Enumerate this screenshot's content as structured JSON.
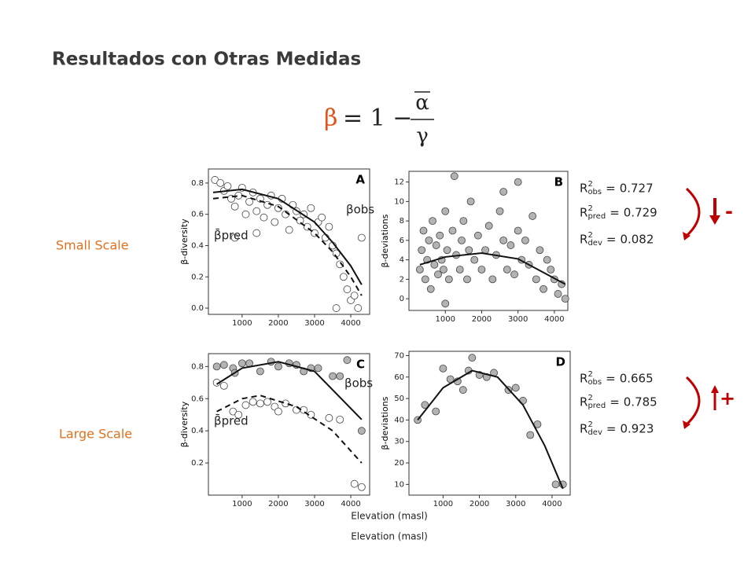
{
  "title": "Resultados con Otras Medidas",
  "formula": {
    "lhs": "β",
    "rhs": "= 1 −",
    "numerator": "α",
    "denominator": "γ"
  },
  "stat_symbol": "R",
  "stat_power": "2",
  "stat_eq": "=",
  "rows": [
    {
      "label": "Small Scale",
      "trend": "-",
      "stats": [
        {
          "sub": "obs",
          "value": 0.727
        },
        {
          "sub": "pred",
          "value": 0.729
        },
        {
          "sub": "dev",
          "value": 0.082
        }
      ]
    },
    {
      "label": "Large Scale",
      "trend": "+",
      "stats": [
        {
          "sub": "obs",
          "value": 0.665
        },
        {
          "sub": "pred",
          "value": 0.785
        },
        {
          "sub": "dev",
          "value": 0.923
        }
      ]
    }
  ],
  "x_axis_label": "Elevation (masl)",
  "caption": "Elevation (masl)",
  "chart_data": [
    {
      "type": "scatter",
      "panel": "A",
      "ylabel": "β-diversity",
      "xlim": [
        70,
        4520
      ],
      "xticks": [
        1000,
        2000,
        3000,
        4000
      ],
      "ylim": [
        -0.04,
        0.89
      ],
      "yticks": [
        {
          "value": 0,
          "label": "0.0"
        },
        0.2,
        0.4,
        0.6,
        0.8
      ],
      "series": [
        {
          "name": "βobs",
          "color": "#ffffff",
          "x": [
            250,
            400,
            500,
            600,
            700,
            800,
            900,
            1000,
            1100,
            1200,
            1300,
            1400,
            1500,
            1600,
            1700,
            1800,
            1900,
            2000,
            2100,
            2200,
            2300,
            2400,
            2500,
            2600,
            2700,
            2800,
            2900,
            3000,
            3100,
            3200,
            3300,
            3400,
            3500,
            3600,
            3700,
            3800,
            3900,
            4000,
            4100,
            4200,
            3600,
            4300,
            800,
            1400
          ],
          "values": [
            0.82,
            0.8,
            0.75,
            0.78,
            0.7,
            0.65,
            0.72,
            0.77,
            0.6,
            0.68,
            0.74,
            0.62,
            0.7,
            0.58,
            0.66,
            0.72,
            0.55,
            0.64,
            0.7,
            0.6,
            0.5,
            0.66,
            0.62,
            0.56,
            0.6,
            0.52,
            0.64,
            0.48,
            0.55,
            0.58,
            0.45,
            0.52,
            0.4,
            0.35,
            0.28,
            0.2,
            0.12,
            0.05,
            0.08,
            0,
            0,
            0.45,
            0.45,
            0.48
          ]
        }
      ],
      "fits": [
        {
          "dash": false,
          "x": [
            200,
            1000,
            2000,
            3000,
            3500,
            4000,
            4300
          ],
          "values": [
            0.74,
            0.76,
            0.7,
            0.55,
            0.42,
            0.27,
            0.15
          ]
        },
        {
          "dash": true,
          "x": [
            200,
            1000,
            2000,
            3000,
            3500,
            4000,
            4300
          ],
          "values": [
            0.7,
            0.72,
            0.65,
            0.48,
            0.36,
            0.2,
            0.08
          ]
        }
      ],
      "annotations": [
        "βobs",
        "β̄pred"
      ]
    },
    {
      "type": "scatter",
      "panel": "B",
      "ylabel": "β-deviations",
      "xlim": [
        0,
        4370
      ],
      "xticks": [
        1000,
        2000,
        3000,
        4000
      ],
      "ylim": [
        -1.2,
        13.1
      ],
      "yticks": [
        0,
        2,
        4,
        6,
        8,
        10,
        12
      ],
      "series": [
        {
          "name": "β-deviations",
          "color": "#b3b3b3",
          "x": [
            300,
            350,
            400,
            450,
            500,
            550,
            600,
            650,
            700,
            750,
            800,
            850,
            900,
            950,
            1000,
            1050,
            1100,
            1200,
            1250,
            1300,
            1400,
            1450,
            1500,
            1600,
            1650,
            1700,
            1800,
            1900,
            2000,
            2100,
            2200,
            2300,
            2400,
            2500,
            2600,
            2700,
            2800,
            2900,
            3000,
            3100,
            3200,
            3300,
            3400,
            3500,
            3600,
            3700,
            3800,
            3900,
            4000,
            4100,
            4200,
            4300,
            1000,
            2600,
            3000
          ],
          "values": [
            3,
            5,
            7,
            2,
            4,
            6,
            1,
            8,
            3.5,
            5.5,
            2.5,
            6.5,
            4,
            3,
            9,
            5,
            2,
            7,
            12.6,
            4.5,
            3,
            6,
            8,
            2,
            5,
            10,
            4,
            6.5,
            3,
            5,
            7.5,
            2,
            4.5,
            9,
            6,
            3,
            5.5,
            2.5,
            7,
            4,
            6,
            3.5,
            8.5,
            2,
            5,
            1,
            4,
            3,
            2,
            0.5,
            1.5,
            0,
            -0.5,
            11,
            12
          ]
        }
      ],
      "fits": [
        {
          "dash": false,
          "x": [
            300,
            1000,
            2000,
            3000,
            4300
          ],
          "values": [
            3.5,
            4.3,
            4.7,
            4.1,
            1.5
          ]
        }
      ]
    },
    {
      "type": "scatter",
      "panel": "C",
      "ylabel": "β-diversity",
      "xlim": [
        70,
        4520
      ],
      "xticks": [
        1000,
        2000,
        3000,
        4000
      ],
      "ylim": [
        0,
        0.88
      ],
      "yticks": [
        0.2,
        0.4,
        0.6,
        0.8
      ],
      "series": [
        {
          "name": "βobs",
          "color": "#b3b3b3",
          "x": [
            300,
            500,
            750,
            800,
            1000,
            1200,
            1500,
            1800,
            2000,
            2300,
            2500,
            2700,
            2900,
            3100,
            3500,
            3700,
            3900,
            4300
          ],
          "values": [
            0.8,
            0.81,
            0.79,
            0.76,
            0.82,
            0.82,
            0.77,
            0.83,
            0.8,
            0.82,
            0.81,
            0.77,
            0.79,
            0.79,
            0.74,
            0.74,
            0.84,
            0.4
          ]
        },
        {
          "name": "β̄pred",
          "color": "#ffffff",
          "x": [
            300,
            500,
            750,
            900,
            1100,
            1300,
            1500,
            1700,
            1900,
            2000,
            2200,
            2500,
            2700,
            2900,
            3400,
            3700,
            4100,
            4300
          ],
          "values": [
            0.7,
            0.68,
            0.52,
            0.5,
            0.56,
            0.58,
            0.57,
            0.58,
            0.55,
            0.52,
            0.57,
            0.53,
            0.53,
            0.5,
            0.48,
            0.47,
            0.07,
            0.05
          ]
        }
      ],
      "fits": [
        {
          "dash": false,
          "x": [
            300,
            1000,
            2000,
            3000,
            4300
          ],
          "values": [
            0.69,
            0.79,
            0.83,
            0.77,
            0.47
          ]
        },
        {
          "dash": true,
          "x": [
            300,
            1000,
            1500,
            2500,
            3500,
            4300
          ],
          "values": [
            0.52,
            0.6,
            0.62,
            0.55,
            0.4,
            0.2
          ]
        }
      ]
    },
    {
      "type": "scatter",
      "panel": "D",
      "ylabel": "β-deviations",
      "xlim": [
        60,
        4500
      ],
      "xticks": [
        1000,
        2000,
        3000,
        4000
      ],
      "ylim": [
        5,
        72
      ],
      "yticks": [
        10,
        20,
        30,
        40,
        50,
        60,
        70
      ],
      "series": [
        {
          "name": "β-deviations",
          "color": "#b3b3b3",
          "x": [
            300,
            500,
            800,
            1000,
            1200,
            1400,
            1550,
            1700,
            1800,
            2000,
            2200,
            2400,
            2800,
            3000,
            3200,
            3400,
            3600,
            4100,
            4300
          ],
          "values": [
            40,
            47,
            44,
            64,
            59,
            58,
            54,
            63,
            69,
            61,
            60,
            62,
            54,
            55,
            49,
            33,
            38,
            10,
            10
          ]
        }
      ],
      "fits": [
        {
          "dash": false,
          "x": [
            300,
            1000,
            1800,
            2500,
            3200,
            3800,
            4300
          ],
          "values": [
            40,
            55,
            63,
            60,
            47,
            28,
            8
          ]
        }
      ]
    }
  ]
}
